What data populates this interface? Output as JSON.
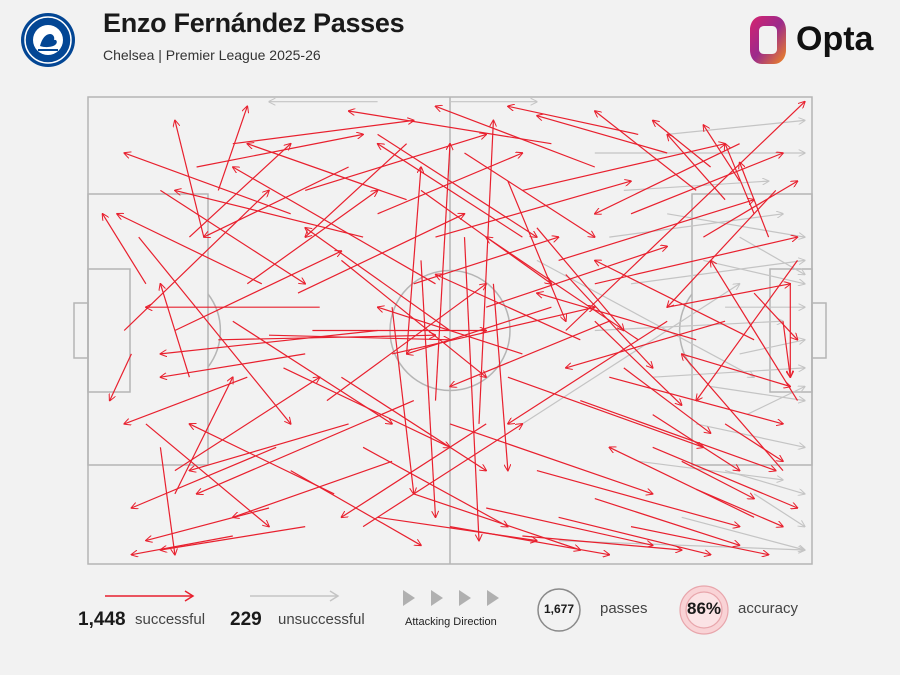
{
  "header": {
    "title": "Enzo Fernández Passes",
    "subtitle": "Chelsea | Premier League 2025-26",
    "brand": "Opta",
    "crest_text": "CHELSEA"
  },
  "colors": {
    "successful": "#e8202e",
    "unsuccessful": "#c4c4c4",
    "pitch_line": "#b5b5b5",
    "background": "#f2f2f2",
    "crest_blue": "#034694"
  },
  "legend": {
    "successful_count": "1,448",
    "successful_label": "successful",
    "unsuccessful_count": "229",
    "unsuccessful_label": "unsuccessful",
    "direction_label": "Attacking Direction",
    "passes_count": "1,677",
    "passes_label": "passes",
    "accuracy_value": "86%",
    "accuracy_label": "accuracy"
  },
  "chart_data": {
    "type": "pass_map",
    "title": "Enzo Fernández Passes",
    "subtitle": "Chelsea | Premier League 2025-26",
    "pitch": {
      "x_range": [
        0,
        100
      ],
      "y_range": [
        0,
        100
      ],
      "attacking_direction": "left-to-right"
    },
    "totals": {
      "successful": 1448,
      "unsuccessful": 229,
      "passes": 1677,
      "accuracy_pct": 86
    },
    "series": [
      {
        "name": "successful",
        "color": "#e8202e",
        "passes": [
          [
            12,
            50,
            35,
            33
          ],
          [
            20,
            48,
            42,
            70
          ],
          [
            14,
            30,
            28,
            10
          ],
          [
            8,
            70,
            25,
            92
          ],
          [
            25,
            51,
            50,
            52
          ],
          [
            18,
            52,
            48,
            51
          ],
          [
            30,
            20,
            55,
            8
          ],
          [
            28,
            80,
            46,
            96
          ],
          [
            22,
            40,
            40,
            20
          ],
          [
            35,
            60,
            55,
            80
          ],
          [
            40,
            25,
            60,
            12
          ],
          [
            38,
            75,
            58,
            92
          ],
          [
            45,
            40,
            65,
            30
          ],
          [
            42,
            55,
            70,
            45
          ],
          [
            48,
            30,
            75,
            18
          ],
          [
            50,
            70,
            78,
            85
          ],
          [
            55,
            45,
            80,
            32
          ],
          [
            58,
            60,
            85,
            75
          ],
          [
            60,
            20,
            88,
            10
          ],
          [
            62,
            80,
            90,
            92
          ],
          [
            65,
            35,
            92,
            22
          ],
          [
            68,
            65,
            95,
            80
          ],
          [
            70,
            40,
            98,
            30
          ],
          [
            72,
            60,
            96,
            70
          ],
          [
            66,
            50,
            99,
            1
          ],
          [
            75,
            25,
            96,
            12
          ],
          [
            78,
            75,
            98,
            88
          ],
          [
            80,
            45,
            97,
            40
          ],
          [
            82,
            55,
            97,
            62
          ],
          [
            85,
            30,
            98,
            18
          ],
          [
            88,
            70,
            96,
            78
          ],
          [
            92,
            42,
            98,
            52
          ],
          [
            96,
            48,
            97,
            60
          ],
          [
            97,
            40,
            97,
            60
          ],
          [
            60,
            30,
            40,
            10
          ],
          [
            55,
            70,
            35,
            90
          ],
          [
            50,
            50,
            30,
            28
          ],
          [
            48,
            40,
            20,
            15
          ],
          [
            45,
            65,
            15,
            85
          ],
          [
            40,
            50,
            10,
            55
          ],
          [
            38,
            30,
            12,
            20
          ],
          [
            36,
            70,
            14,
            80
          ],
          [
            32,
            45,
            8,
            45
          ],
          [
            30,
            55,
            10,
            60
          ],
          [
            28,
            25,
            5,
            12
          ],
          [
            26,
            75,
            6,
            88
          ],
          [
            24,
            40,
            4,
            25
          ],
          [
            22,
            60,
            5,
            70
          ],
          [
            64,
            10,
            36,
            3
          ],
          [
            70,
            15,
            48,
            2
          ],
          [
            76,
            8,
            58,
            2
          ],
          [
            80,
            12,
            62,
            4
          ],
          [
            84,
            20,
            70,
            3
          ],
          [
            86,
            15,
            78,
            5
          ],
          [
            88,
            22,
            80,
            8
          ],
          [
            90,
            18,
            85,
            6
          ],
          [
            92,
            25,
            88,
            10
          ],
          [
            94,
            30,
            90,
            14
          ],
          [
            40,
            90,
            62,
            95
          ],
          [
            45,
            85,
            68,
            97
          ],
          [
            50,
            92,
            72,
            98
          ],
          [
            55,
            88,
            78,
            96
          ],
          [
            60,
            94,
            82,
            97
          ],
          [
            65,
            90,
            86,
            98
          ],
          [
            70,
            86,
            90,
            96
          ],
          [
            75,
            92,
            94,
            98
          ],
          [
            30,
            92,
            10,
            97
          ],
          [
            25,
            88,
            8,
            95
          ],
          [
            20,
            94,
            6,
            98
          ],
          [
            18,
            20,
            22,
            2
          ],
          [
            16,
            30,
            12,
            5
          ],
          [
            14,
            60,
            10,
            40
          ],
          [
            10,
            75,
            12,
            98
          ],
          [
            12,
            85,
            20,
            60
          ],
          [
            8,
            40,
            2,
            25
          ],
          [
            6,
            55,
            3,
            65
          ],
          [
            44,
            10,
            30,
            30
          ],
          [
            46,
            20,
            64,
            40
          ],
          [
            52,
            12,
            70,
            30
          ],
          [
            58,
            18,
            66,
            48
          ],
          [
            62,
            28,
            74,
            50
          ],
          [
            66,
            38,
            78,
            58
          ],
          [
            70,
            48,
            82,
            66
          ],
          [
            74,
            58,
            86,
            72
          ],
          [
            78,
            68,
            90,
            80
          ],
          [
            82,
            78,
            92,
            86
          ],
          [
            84,
            84,
            96,
            92
          ],
          [
            35,
            35,
            55,
            60
          ],
          [
            33,
            65,
            55,
            40
          ],
          [
            31,
            50,
            55,
            50
          ],
          [
            29,
            42,
            52,
            25
          ],
          [
            27,
            58,
            50,
            75
          ],
          [
            20,
            10,
            45,
            5
          ],
          [
            15,
            15,
            38,
            8
          ],
          [
            60,
            55,
            40,
            45
          ],
          [
            64,
            45,
            44,
            55
          ],
          [
            68,
            52,
            48,
            38
          ],
          [
            72,
            48,
            50,
            62
          ],
          [
            76,
            52,
            55,
            30
          ],
          [
            80,
            48,
            58,
            70
          ],
          [
            84,
            52,
            62,
            42
          ],
          [
            88,
            48,
            66,
            58
          ],
          [
            92,
            52,
            70,
            35
          ],
          [
            42,
            45,
            45,
            85
          ],
          [
            44,
            55,
            46,
            15
          ],
          [
            46,
            35,
            48,
            90
          ],
          [
            48,
            65,
            50,
            10
          ],
          [
            52,
            30,
            54,
            95
          ],
          [
            54,
            70,
            56,
            5
          ],
          [
            56,
            40,
            58,
            80
          ],
          [
            10,
            20,
            30,
            40
          ],
          [
            12,
            80,
            32,
            60
          ],
          [
            5,
            50,
            25,
            20
          ],
          [
            7,
            30,
            28,
            70
          ],
          [
            90,
            10,
            70,
            25
          ],
          [
            92,
            90,
            72,
            75
          ],
          [
            95,
            20,
            80,
            45
          ],
          [
            96,
            80,
            82,
            55
          ],
          [
            98,
            35,
            84,
            65
          ],
          [
            98,
            65,
            86,
            35
          ],
          [
            34,
            85,
            14,
            70
          ],
          [
            36,
            15,
            16,
            30
          ],
          [
            38,
            92,
            60,
            70
          ],
          [
            40,
            8,
            62,
            30
          ],
          [
            42,
            78,
            20,
            90
          ],
          [
            44,
            22,
            22,
            10
          ]
        ]
      },
      {
        "name": "unsuccessful",
        "color": "#c4c4c4",
        "passes": [
          [
            40,
            1,
            25,
            1
          ],
          [
            50,
            1,
            62,
            1
          ],
          [
            70,
            12,
            99,
            12
          ],
          [
            80,
            25,
            99,
            30
          ],
          [
            85,
            35,
            99,
            40
          ],
          [
            88,
            45,
            99,
            45
          ],
          [
            90,
            55,
            99,
            52
          ],
          [
            86,
            62,
            99,
            65
          ],
          [
            84,
            70,
            99,
            75
          ],
          [
            88,
            80,
            99,
            85
          ],
          [
            92,
            85,
            99,
            92
          ],
          [
            82,
            90,
            99,
            97
          ],
          [
            75,
            40,
            99,
            35
          ],
          [
            78,
            60,
            99,
            58
          ],
          [
            70,
            50,
            96,
            48
          ],
          [
            72,
            30,
            96,
            25
          ],
          [
            80,
            8,
            99,
            5
          ],
          [
            65,
            95,
            99,
            97
          ],
          [
            60,
            70,
            90,
            40
          ],
          [
            62,
            35,
            92,
            60
          ],
          [
            90,
            30,
            99,
            38
          ],
          [
            91,
            68,
            99,
            62
          ],
          [
            76,
            78,
            96,
            82
          ],
          [
            74,
            20,
            94,
            18
          ]
        ]
      }
    ]
  }
}
